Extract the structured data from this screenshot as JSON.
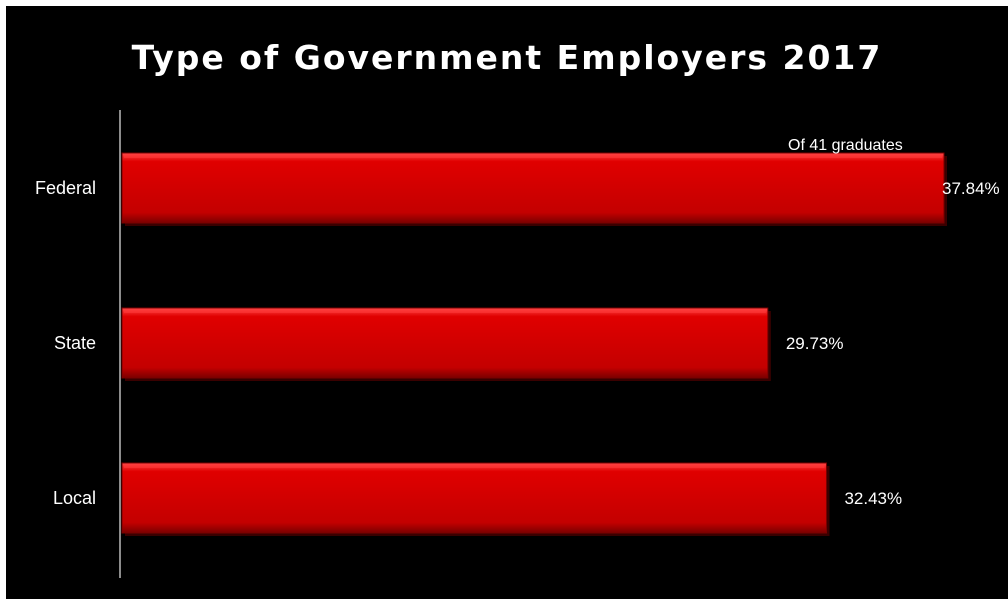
{
  "chart_data": {
    "type": "bar",
    "orientation": "horizontal",
    "title": "Type of Government Employers 2017",
    "annotation": "Of 41 graduates",
    "categories": [
      "Federal",
      "State",
      "Local"
    ],
    "values": [
      37.84,
      29.73,
      32.43
    ],
    "value_labels": [
      "37.84%",
      "29.73%",
      "32.43%"
    ],
    "grid": false,
    "legend": "none",
    "colors": {
      "background": "#000000",
      "bar": "#cc0000",
      "bar_highlight": "#ff3b3b",
      "bar_shadow": "#7a0000",
      "axis": "#8c8c8c",
      "text": "#ffffff"
    }
  }
}
